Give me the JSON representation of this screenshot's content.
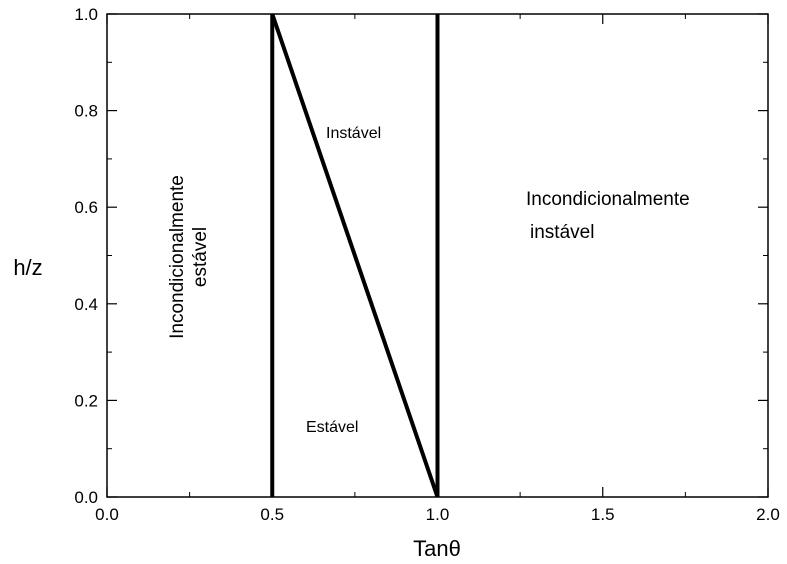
{
  "chart_data": {
    "type": "line",
    "xlabel": "Tanθ",
    "ylabel": "h/z",
    "xlim": [
      0.0,
      2.0
    ],
    "ylim": [
      0.0,
      1.0
    ],
    "x_ticks": [
      0.0,
      0.5,
      1.0,
      1.5,
      2.0
    ],
    "x_tick_labels": [
      "0.0",
      "0.5",
      "1.0",
      "1.5",
      "2.0"
    ],
    "y_ticks": [
      0.0,
      0.2,
      0.4,
      0.6,
      0.8,
      1.0
    ],
    "y_tick_labels": [
      "0.0",
      "0.2",
      "0.4",
      "0.6",
      "0.8",
      "1.0"
    ],
    "grid": false,
    "series": [
      {
        "x": [
          0.5,
          0.5
        ],
        "y": [
          0.0,
          1.0
        ]
      },
      {
        "x": [
          1.0,
          1.0
        ],
        "y": [
          0.0,
          1.0
        ]
      },
      {
        "x": [
          0.5,
          1.0
        ],
        "y": [
          1.0,
          0.0
        ]
      }
    ],
    "annotations": {
      "unconditionally_stable": "Incondicionalmente estável",
      "unstable": "Instável",
      "stable": "Estável",
      "unconditionally_unstable_line1": "Incondicionalmente",
      "unconditionally_unstable_line2": "instável"
    },
    "annotation_lines": {
      "unconditionally_stable_line1": "Incondicionalmente",
      "unconditionally_stable_line2": "estável"
    }
  }
}
